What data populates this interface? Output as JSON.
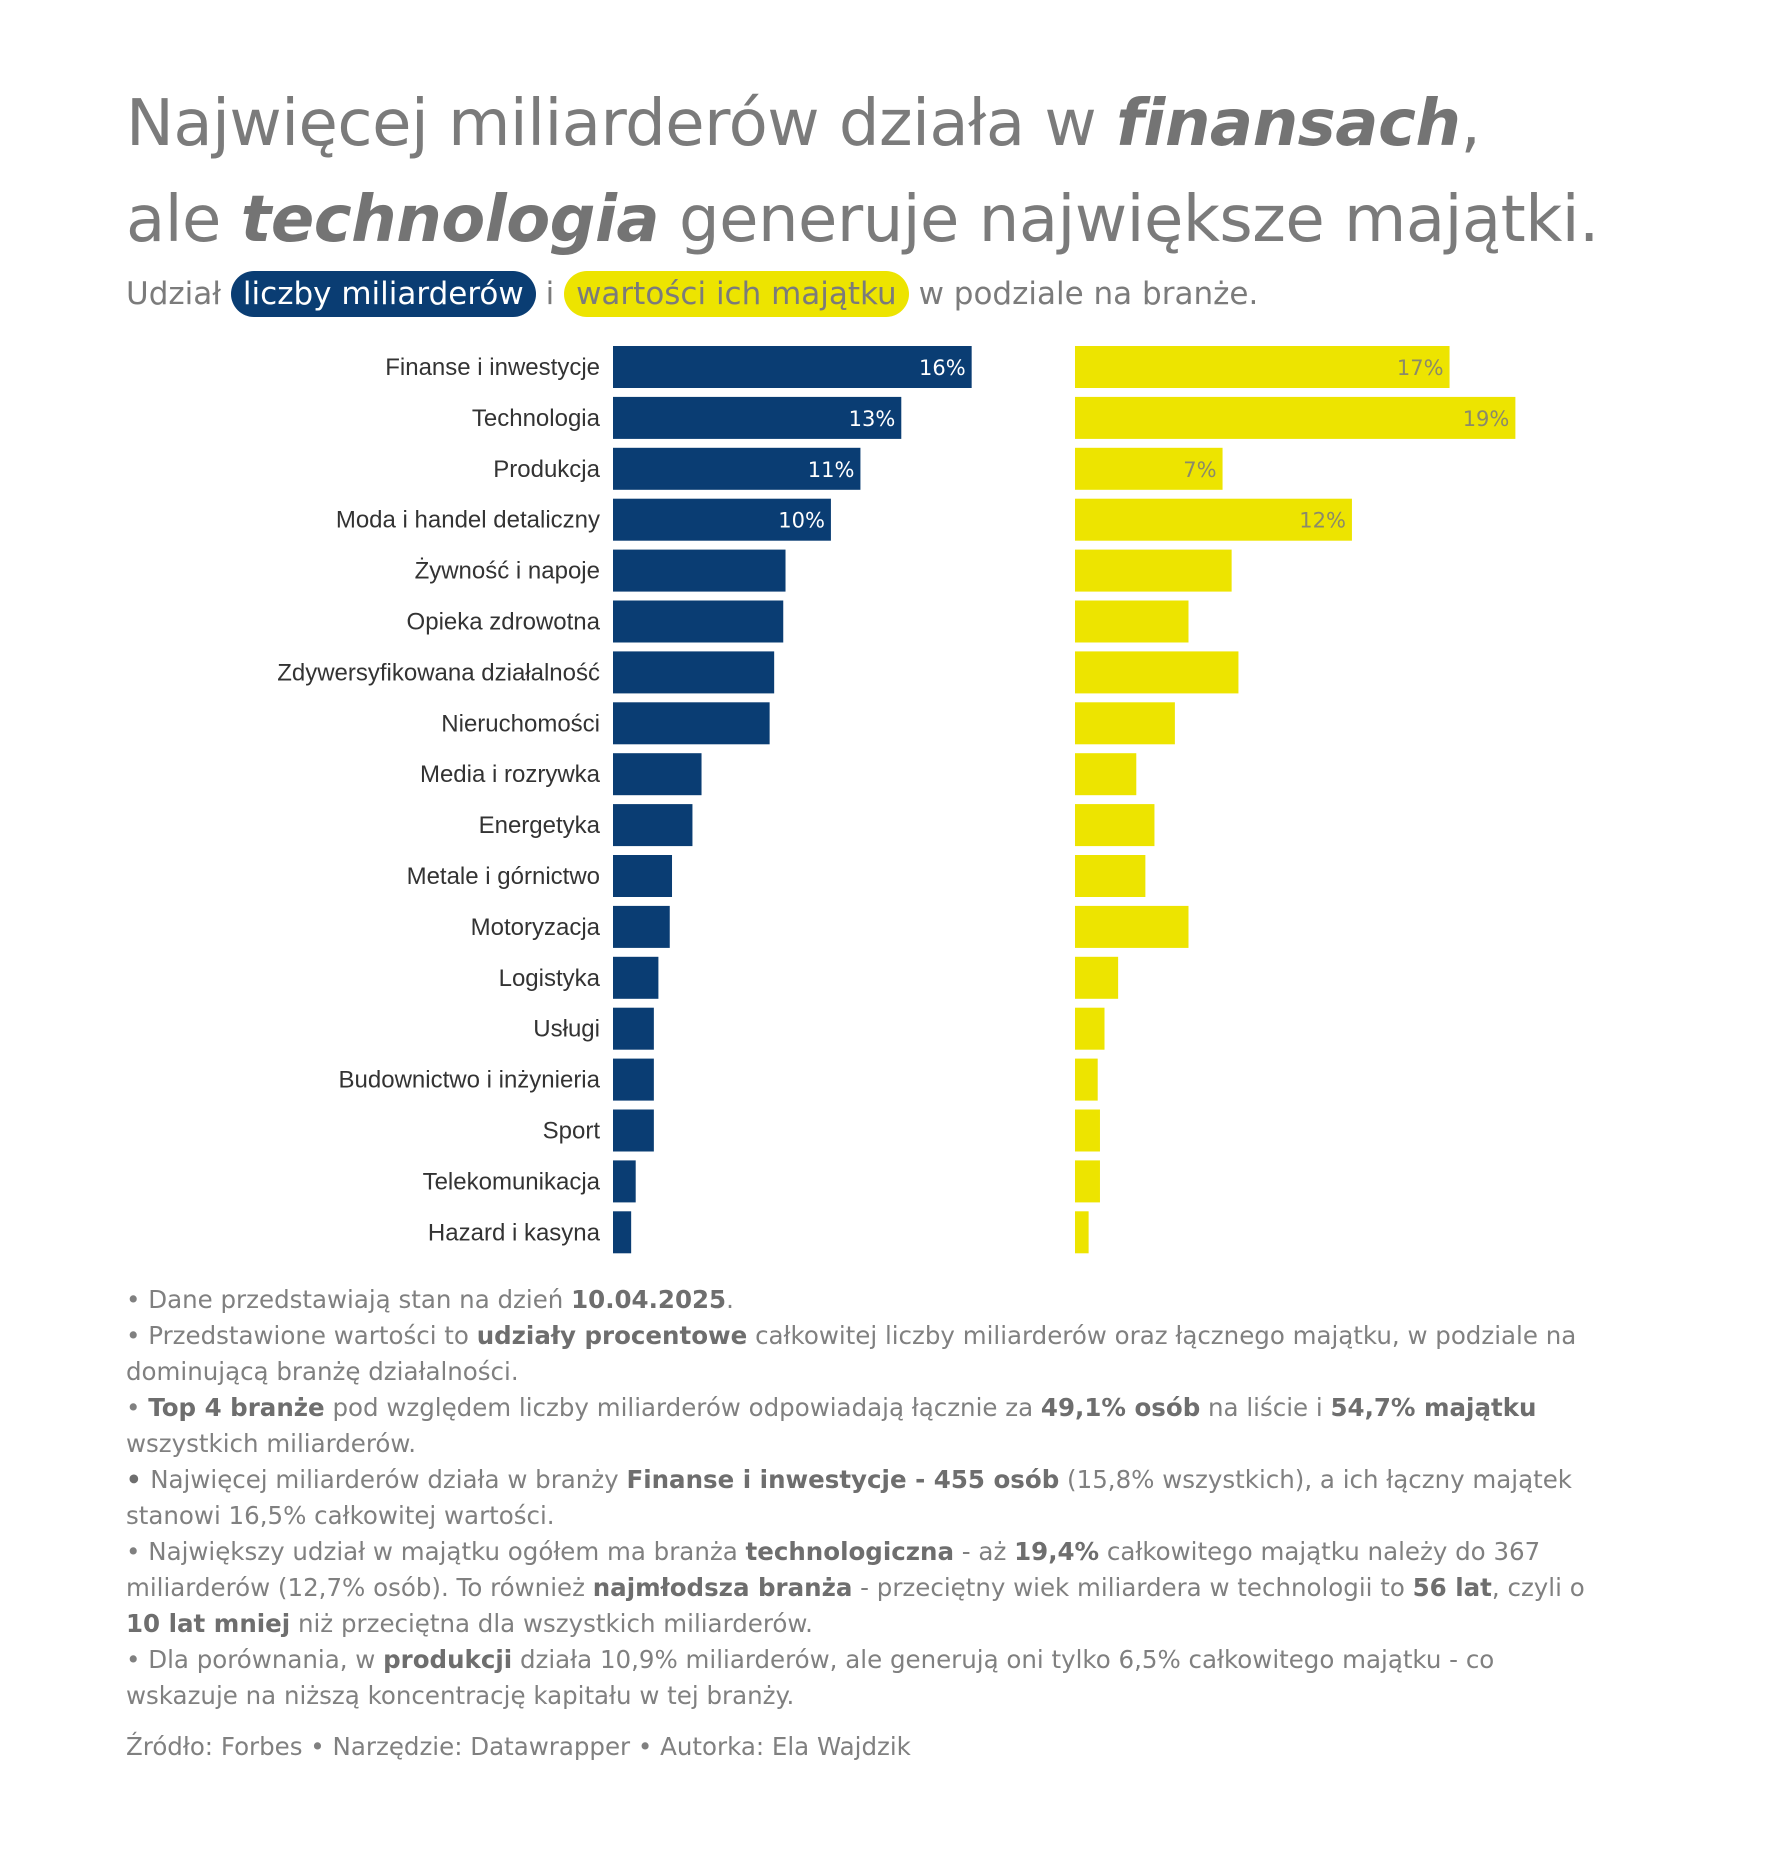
{
  "title": {
    "line1_a": "Najwięcej miliarderów działa w ",
    "line1_b": "finansach",
    "line1_c": ",",
    "line2_a": "ale ",
    "line2_b": "technologia",
    "line2_c": " generuje największe majątki."
  },
  "subtitle": {
    "pre": "Udział",
    "count_label": "liczby miliarderów",
    "mid": "i",
    "wealth_label": "wartości ich majątku",
    "post": "w podziale na branże."
  },
  "colors": {
    "count": "#0a3d73",
    "wealth": "#ede400",
    "label": "#333333",
    "count_text": "#ffffff",
    "wealth_text": "#8a8a6a"
  },
  "chart_data": {
    "type": "bar",
    "orientation": "horizontal",
    "categories": [
      "Finanse i inwestycje",
      "Technologia",
      "Produkcja",
      "Moda i handel detaliczny",
      "Żywność i napoje",
      "Opieka zdrowotna",
      "Zdywersyfikowana działalność",
      "Nieruchomości",
      "Media i rozrywka",
      "Energetyka",
      "Metale i górnictwo",
      "Motoryzacja",
      "Logistyka",
      "Usługi",
      "Budownictwo i inżynieria",
      "Sport",
      "Telekomunikacja",
      "Hazard i kasyna"
    ],
    "series": [
      {
        "name": "liczby miliarderów",
        "values": [
          15.8,
          12.7,
          10.9,
          9.6,
          7.6,
          7.5,
          7.1,
          6.9,
          3.9,
          3.5,
          2.6,
          2.5,
          2.0,
          1.8,
          1.8,
          1.8,
          1.0,
          0.8
        ],
        "data_labels": [
          "16%",
          "13%",
          "11%",
          "10%",
          "",
          "",
          "",
          "",
          "",
          "",
          "",
          "",
          "",
          "",
          "",
          "",
          "",
          ""
        ]
      },
      {
        "name": "wartości ich majątku",
        "values": [
          16.5,
          19.4,
          6.5,
          12.2,
          6.9,
          5.0,
          7.2,
          4.4,
          2.7,
          3.5,
          3.1,
          5.0,
          1.9,
          1.3,
          1.0,
          1.1,
          1.1,
          0.6
        ],
        "data_labels": [
          "17%",
          "19%",
          "7%",
          "12%",
          "",
          "",
          "",
          "",
          "",
          "",
          "",
          "",
          "",
          "",
          "",
          "",
          "",
          ""
        ]
      }
    ]
  },
  "notes": [
    {
      "parts": [
        {
          "t": "• Dane przedstawiają stan na dzień "
        },
        {
          "t": "10.04.2025",
          "b": true
        },
        {
          "t": "."
        }
      ]
    },
    {
      "parts": [
        {
          "t": "• Przedstawione wartości to "
        },
        {
          "t": "udziały procentowe",
          "b": true
        },
        {
          "t": " całkowitej liczby miliarderów oraz łącznego majątku, w podziale na dominującą branżę działalności."
        }
      ]
    },
    {
      "parts": [
        {
          "t": "• "
        },
        {
          "t": "Top 4 branże",
          "b": true
        },
        {
          "t": " pod względem liczby miliarderów odpowiadają łącznie za "
        },
        {
          "t": "49,1% osób",
          "b": true
        },
        {
          "t": " na liście i "
        },
        {
          "t": "54,7% majątku",
          "b": true
        },
        {
          "t": " wszystkich miliarderów."
        }
      ]
    },
    {
      "parts": [
        {
          "t": "• ",
          "b": true
        },
        {
          "t": "Najwięcej miliarderów działa w branży "
        },
        {
          "t": "Finanse i inwestycje - 455 osób",
          "b": true
        },
        {
          "t": " (15,8% wszystkich), a ich łączny majątek stanowi 16,5% całkowitej wartości."
        }
      ]
    },
    {
      "parts": [
        {
          "t": "• Największy udział w majątku ogółem ma branża "
        },
        {
          "t": "technologiczna",
          "b": true
        },
        {
          "t": " - aż "
        },
        {
          "t": "19,4%",
          "b": true
        },
        {
          "t": " całkowitego majątku należy do 367 miliarderów (12,7% osób). To również "
        },
        {
          "t": "najmłodsza branża",
          "b": true
        },
        {
          "t": " - przeciętny wiek miliardera w technologii to "
        },
        {
          "t": "56 lat",
          "b": true
        },
        {
          "t": ", czyli o "
        },
        {
          "t": "10 lat mniej",
          "b": true
        },
        {
          "t": " niż przeciętna dla wszystkich miliarderów."
        }
      ]
    },
    {
      "parts": [
        {
          "t": "• Dla porównania, w "
        },
        {
          "t": "produkcji",
          "b": true
        },
        {
          "t": " działa 10,9% miliarderów, ale generują oni tylko 6,5% całkowitego majątku - co wskazuje na niższą koncentrację kapitału w tej branży."
        }
      ]
    }
  ],
  "source": "Źródło: Forbes • Narzędzie: Datawrapper • Autorka: Ela Wajdzik"
}
